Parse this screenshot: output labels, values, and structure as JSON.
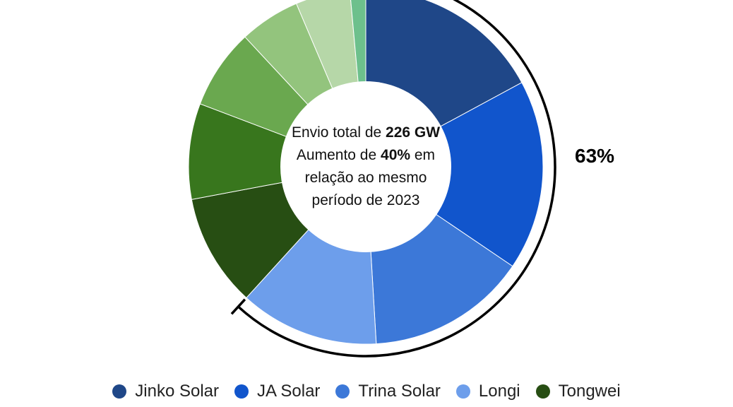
{
  "chart_data": {
    "type": "pie",
    "variant": "donut",
    "center_text": {
      "line1_prefix": "Envio total de ",
      "line1_bold": "226 GW",
      "line2_prefix": "Aumento de ",
      "line2_bold": "40%",
      "line2_suffix": " em",
      "line3": "relação ao mesmo",
      "line4": "período de 2023"
    },
    "slices": [
      {
        "name": "Jinko Solar",
        "value": 15.5,
        "color": "#1f4788"
      },
      {
        "name": "JA Solar",
        "value": 15.7,
        "color": "#1155cc"
      },
      {
        "name": "Trina Solar",
        "value": 13.2,
        "color": "#3c78d8"
      },
      {
        "name": "Longi",
        "value": 11.5,
        "color": "#6d9eeb"
      },
      {
        "name": "Tongwei",
        "value": 9.3,
        "color": "#274e13"
      },
      {
        "name": "",
        "value": 7.9,
        "color": "#38761d"
      },
      {
        "name": "",
        "value": 6.6,
        "color": "#6aa84f"
      },
      {
        "name": "",
        "value": 5.0,
        "color": "#93c47d"
      },
      {
        "name": "",
        "value": 4.5,
        "color": "#b6d7a8"
      },
      {
        "name": "",
        "value": 1.3,
        "color": "#6dc08c"
      }
    ],
    "bracket_label": "63%",
    "legend": [
      {
        "label": "Jinko Solar",
        "color": "#1f4788"
      },
      {
        "label": "JA Solar",
        "color": "#1155cc"
      },
      {
        "label": "Trina Solar",
        "color": "#3c78d8"
      },
      {
        "label": "Longi",
        "color": "#6d9eeb"
      },
      {
        "label": "Tongwei",
        "color": "#274e13"
      }
    ]
  }
}
